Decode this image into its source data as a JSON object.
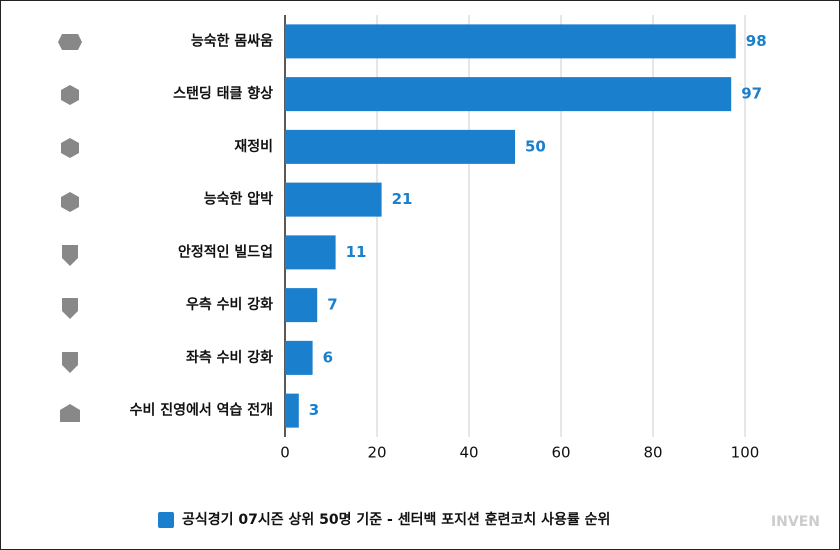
{
  "chart_data": {
    "type": "hbar",
    "categories": [
      "능숙한 몸싸움",
      "스탠딩 태클 향상",
      "재정비",
      "능숙한 압박",
      "안정적인 빌드업",
      "우측 수비 강화",
      "좌측 수비 강화",
      "수비 진영에서 역습 전개"
    ],
    "series": [
      {
        "name": "공식경기 07시즌 상위 50명 기준 - 센터백 포지션 훈련코치 사용률 순위",
        "color": "#1a7fcc",
        "values": [
          98,
          97,
          50,
          21,
          11,
          7,
          6,
          3
        ]
      }
    ],
    "xlim": [
      0,
      100
    ],
    "xticks": [
      0,
      20,
      40,
      60,
      80,
      100
    ],
    "grid": true
  },
  "watermark": "INVEN"
}
